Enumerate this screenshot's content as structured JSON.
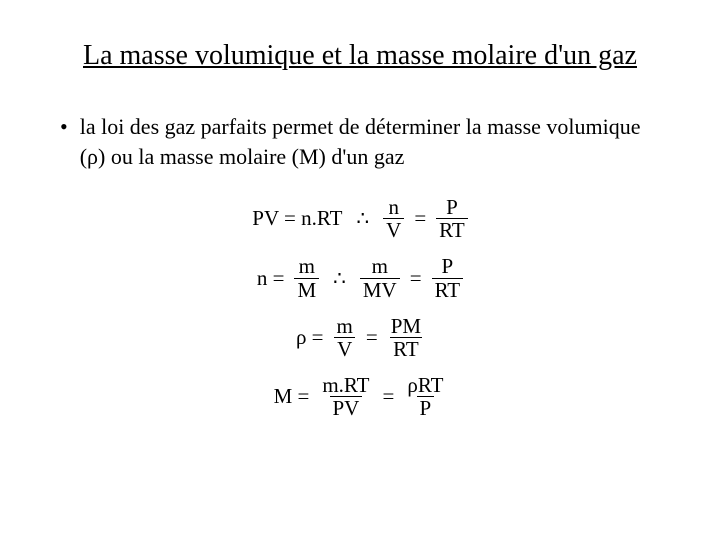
{
  "title": "La masse volumique et la masse molaire d'un gaz",
  "bullet": "la loi des gaz parfaits permet de déterminer la masse volumique (ρ) ou la masse molaire (M) d'un gaz",
  "eq1": {
    "lhs": "PV = n.RT",
    "therefore": "∴",
    "f1n": "n",
    "f1d": "V",
    "eq": "=",
    "f2n": "P",
    "f2d": "RT"
  },
  "eq2": {
    "lhs_n": "n =",
    "f0n": "m",
    "f0d": "M",
    "therefore": "∴",
    "f1n": "m",
    "f1d": "MV",
    "eq": "=",
    "f2n": "P",
    "f2d": "RT"
  },
  "eq3": {
    "lhs": "ρ =",
    "f1n": "m",
    "f1d": "V",
    "eq1": "=",
    "f2n": "PM",
    "f2d": "RT"
  },
  "eq4": {
    "lhs": "M =",
    "f1n": "m.RT",
    "f1d": "PV",
    "eq1": "=",
    "f2n": "ρRT",
    "f2d": "P"
  },
  "style": {
    "background": "#ffffff",
    "text_color": "#000000",
    "title_fontsize": 28,
    "body_fontsize": 22,
    "eq_fontsize": 21,
    "font_family": "Times New Roman"
  }
}
